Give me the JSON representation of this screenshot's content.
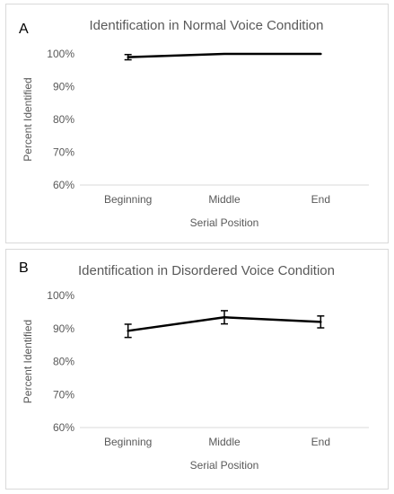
{
  "chart_data": [
    {
      "panel_label": "A",
      "type": "line",
      "title": "Identification in Normal Voice Condition",
      "xlabel": "Serial Position",
      "ylabel": "Percent Identified",
      "categories": [
        "Beginning",
        "Middle",
        "End"
      ],
      "values": [
        99,
        100,
        100
      ],
      "error": [
        0.8,
        0,
        0
      ],
      "ylim": [
        60,
        100
      ],
      "yticks": [
        60,
        70,
        80,
        90,
        100
      ],
      "ytick_labels": [
        "60%",
        "70%",
        "80%",
        "90%",
        "100%"
      ],
      "grid": false,
      "line_color": "#000000"
    },
    {
      "panel_label": "B",
      "type": "line",
      "title": "Identification in Disordered Voice Condition",
      "xlabel": "Serial Position",
      "ylabel": "Percent Identified",
      "categories": [
        "Beginning",
        "Middle",
        "End"
      ],
      "values": [
        89.3,
        93.4,
        92
      ],
      "error": [
        2,
        2,
        1.8
      ],
      "ylim": [
        60,
        100
      ],
      "yticks": [
        60,
        70,
        80,
        90,
        100
      ],
      "ytick_labels": [
        "60%",
        "70%",
        "80%",
        "90%",
        "100%"
      ],
      "grid": false,
      "line_color": "#000000"
    }
  ]
}
